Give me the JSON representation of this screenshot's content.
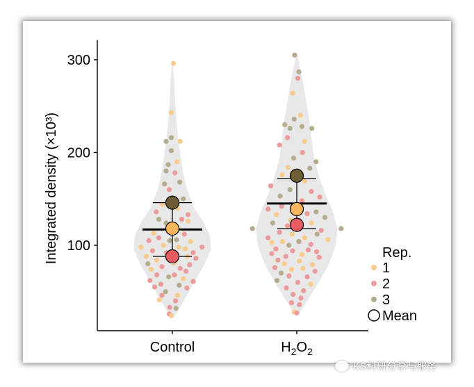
{
  "chart_data": {
    "type": "scatter",
    "subtype": "violin-superplot",
    "ylabel": "Integrated density (×10³)",
    "yticks": [
      100,
      200,
      300
    ],
    "ylim": [
      10,
      315
    ],
    "categories": [
      {
        "label": "Control",
        "main": "Control",
        "sub": "",
        "tail": ""
      },
      {
        "label": "H2O2",
        "main": "H",
        "sub": "2",
        "tail": "O",
        "sub2": "2"
      }
    ],
    "legend": {
      "title": "Rep.",
      "placement": "right",
      "items": [
        {
          "label": "1",
          "color": "#f9cc8e"
        },
        {
          "label": "2",
          "color": "#ec9a9a"
        },
        {
          "label": "3",
          "color": "#b5ac8e"
        }
      ],
      "mean_label": "Mean"
    },
    "rep_colors": {
      "1": "#f9cc8e",
      "2": "#ec9a9a",
      "3": "#b5ac8e"
    },
    "mean_colors": {
      "1": "#fbb55a",
      "2": "#e65a62",
      "3": "#6e5d32"
    },
    "violin_color": "#e8e8e8",
    "groups": [
      {
        "category": "Control",
        "violin": [
          {
            "y": 24,
            "w": 0.05
          },
          {
            "y": 40,
            "w": 0.22
          },
          {
            "y": 60,
            "w": 0.42
          },
          {
            "y": 80,
            "w": 0.62
          },
          {
            "y": 95,
            "w": 0.74
          },
          {
            "y": 110,
            "w": 0.72
          },
          {
            "y": 125,
            "w": 0.6
          },
          {
            "y": 140,
            "w": 0.42
          },
          {
            "y": 160,
            "w": 0.28
          },
          {
            "y": 180,
            "w": 0.2
          },
          {
            "y": 200,
            "w": 0.15
          },
          {
            "y": 220,
            "w": 0.1
          },
          {
            "y": 240,
            "w": 0.07
          },
          {
            "y": 260,
            "w": 0.05
          },
          {
            "y": 280,
            "w": 0.03
          },
          {
            "y": 297,
            "w": 0.01
          }
        ],
        "means": {
          "1": 118,
          "2": 88,
          "3": 146
        },
        "overall_mean": 117,
        "error": [
          88,
          146
        ],
        "points": [
          {
            "dx": 0.02,
            "y": 296,
            "rep": "1"
          },
          {
            "dx": -0.02,
            "y": 243,
            "rep": "1"
          },
          {
            "dx": 0.15,
            "y": 212,
            "rep": "1"
          },
          {
            "dx": -0.12,
            "y": 212,
            "rep": "3"
          },
          {
            "dx": -0.02,
            "y": 216,
            "rep": "3"
          },
          {
            "dx": -0.02,
            "y": 202,
            "rep": "3"
          },
          {
            "dx": 0.09,
            "y": 190,
            "rep": "1"
          },
          {
            "dx": -0.08,
            "y": 187,
            "rep": "3"
          },
          {
            "dx": -0.12,
            "y": 180,
            "rep": "3"
          },
          {
            "dx": 0.05,
            "y": 178,
            "rep": "2"
          },
          {
            "dx": 0.14,
            "y": 168,
            "rep": "3"
          },
          {
            "dx": -0.15,
            "y": 166,
            "rep": "3"
          },
          {
            "dx": -0.06,
            "y": 160,
            "rep": "2"
          },
          {
            "dx": 0.21,
            "y": 150,
            "rep": "3"
          },
          {
            "dx": -0.19,
            "y": 144,
            "rep": "1"
          },
          {
            "dx": 0.1,
            "y": 140,
            "rep": "1"
          },
          {
            "dx": -0.31,
            "y": 136,
            "rep": "2"
          },
          {
            "dx": 0.3,
            "y": 133,
            "rep": "2"
          },
          {
            "dx": -0.26,
            "y": 128,
            "rep": "3"
          },
          {
            "dx": 0.18,
            "y": 128,
            "rep": "2"
          },
          {
            "dx": -0.12,
            "y": 124,
            "rep": "3"
          },
          {
            "dx": 0.3,
            "y": 126,
            "rep": "1"
          },
          {
            "dx": -0.36,
            "y": 113,
            "rep": "1"
          },
          {
            "dx": 0.23,
            "y": 112,
            "rep": "2"
          },
          {
            "dx": -0.26,
            "y": 108,
            "rep": "2"
          },
          {
            "dx": -0.45,
            "y": 105,
            "rep": "2"
          },
          {
            "dx": 0.08,
            "y": 106,
            "rep": "3"
          },
          {
            "dx": -0.05,
            "y": 105,
            "rep": "3"
          },
          {
            "dx": 0.35,
            "y": 104,
            "rep": "1"
          },
          {
            "dx": -0.17,
            "y": 100,
            "rep": "1"
          },
          {
            "dx": 0.12,
            "y": 98,
            "rep": "1"
          },
          {
            "dx": -0.6,
            "y": 98,
            "rep": "1"
          },
          {
            "dx": 0.57,
            "y": 98,
            "rep": "2"
          },
          {
            "dx": 0.25,
            "y": 96,
            "rep": "1"
          },
          {
            "dx": -0.38,
            "y": 94,
            "rep": "2"
          },
          {
            "dx": -0.11,
            "y": 92,
            "rep": "2"
          },
          {
            "dx": 0.4,
            "y": 92,
            "rep": "2"
          },
          {
            "dx": -0.5,
            "y": 88,
            "rep": "1"
          },
          {
            "dx": 0.29,
            "y": 88,
            "rep": "1"
          },
          {
            "dx": 0.45,
            "y": 86,
            "rep": "2"
          },
          {
            "dx": -0.3,
            "y": 84,
            "rep": "1"
          },
          {
            "dx": -0.47,
            "y": 80,
            "rep": "3"
          },
          {
            "dx": 0.04,
            "y": 81,
            "rep": "1"
          },
          {
            "dx": 0.33,
            "y": 79,
            "rep": "2"
          },
          {
            "dx": -0.2,
            "y": 77,
            "rep": "2"
          },
          {
            "dx": 0.15,
            "y": 75,
            "rep": "2"
          },
          {
            "dx": -0.41,
            "y": 74,
            "rep": "1"
          },
          {
            "dx": 0.26,
            "y": 72,
            "rep": "2"
          },
          {
            "dx": -0.3,
            "y": 68,
            "rep": "2"
          },
          {
            "dx": 0.04,
            "y": 68,
            "rep": "2"
          },
          {
            "dx": -0.07,
            "y": 66,
            "rep": "3"
          },
          {
            "dx": 0.21,
            "y": 64,
            "rep": "1"
          },
          {
            "dx": -0.43,
            "y": 62,
            "rep": "2"
          },
          {
            "dx": 0.4,
            "y": 61,
            "rep": "2"
          },
          {
            "dx": -0.22,
            "y": 58,
            "rep": "2"
          },
          {
            "dx": 0.13,
            "y": 57,
            "rep": "3"
          },
          {
            "dx": -0.34,
            "y": 55,
            "rep": "2"
          },
          {
            "dx": 0.28,
            "y": 54,
            "rep": "2"
          },
          {
            "dx": -0.13,
            "y": 50,
            "rep": "3"
          },
          {
            "dx": -0.2,
            "y": 46,
            "rep": "2"
          },
          {
            "dx": 0.1,
            "y": 46,
            "rep": "1"
          },
          {
            "dx": -0.25,
            "y": 41,
            "rep": "1"
          },
          {
            "dx": 0.06,
            "y": 40,
            "rep": "2"
          },
          {
            "dx": -0.05,
            "y": 33,
            "rep": "2"
          },
          {
            "dx": 0.07,
            "y": 32,
            "rep": "3"
          },
          {
            "dx": -0.06,
            "y": 26,
            "rep": "2"
          },
          {
            "dx": -0.02,
            "y": 24,
            "rep": "1"
          }
        ]
      },
      {
        "category": "H2O2",
        "violin": [
          {
            "y": 27,
            "w": 0.05
          },
          {
            "y": 40,
            "w": 0.2
          },
          {
            "y": 60,
            "w": 0.42
          },
          {
            "y": 80,
            "w": 0.62
          },
          {
            "y": 100,
            "w": 0.75
          },
          {
            "y": 118,
            "w": 0.78
          },
          {
            "y": 135,
            "w": 0.7
          },
          {
            "y": 155,
            "w": 0.55
          },
          {
            "y": 175,
            "w": 0.42
          },
          {
            "y": 195,
            "w": 0.33
          },
          {
            "y": 215,
            "w": 0.28
          },
          {
            "y": 235,
            "w": 0.24
          },
          {
            "y": 255,
            "w": 0.18
          },
          {
            "y": 275,
            "w": 0.12
          },
          {
            "y": 292,
            "w": 0.06
          },
          {
            "y": 306,
            "w": 0.01
          }
        ],
        "means": {
          "1": 139,
          "2": 122,
          "3": 175
        },
        "overall_mean": 145,
        "error": [
          118,
          172
        ],
        "points": [
          {
            "dx": -0.04,
            "y": 305,
            "rep": "3"
          },
          {
            "dx": 0.04,
            "y": 287,
            "rep": "3"
          },
          {
            "dx": 0.02,
            "y": 280,
            "rep": "2"
          },
          {
            "dx": -0.08,
            "y": 264,
            "rep": "1"
          },
          {
            "dx": 0.07,
            "y": 240,
            "rep": "1"
          },
          {
            "dx": -0.05,
            "y": 236,
            "rep": "3"
          },
          {
            "dx": -0.23,
            "y": 230,
            "rep": "3"
          },
          {
            "dx": 0.1,
            "y": 228,
            "rep": "3"
          },
          {
            "dx": -0.13,
            "y": 226,
            "rep": "3"
          },
          {
            "dx": 0.29,
            "y": 226,
            "rep": "3"
          },
          {
            "dx": -0.18,
            "y": 216,
            "rep": "2"
          },
          {
            "dx": 0.15,
            "y": 212,
            "rep": "1"
          },
          {
            "dx": -0.33,
            "y": 208,
            "rep": "2"
          },
          {
            "dx": 0.11,
            "y": 200,
            "rep": "2"
          },
          {
            "dx": -0.06,
            "y": 194,
            "rep": "3"
          },
          {
            "dx": 0.37,
            "y": 190,
            "rep": "3"
          },
          {
            "dx": -0.17,
            "y": 184,
            "rep": "1"
          },
          {
            "dx": 0.25,
            "y": 183,
            "rep": "3"
          },
          {
            "dx": -0.28,
            "y": 176,
            "rep": "1"
          },
          {
            "dx": 0.15,
            "y": 169,
            "rep": "1"
          },
          {
            "dx": -0.5,
            "y": 164,
            "rep": "2"
          },
          {
            "dx": -0.13,
            "y": 160,
            "rep": "3"
          },
          {
            "dx": 0.28,
            "y": 158,
            "rep": "2"
          },
          {
            "dx": -0.32,
            "y": 153,
            "rep": "3"
          },
          {
            "dx": 0.44,
            "y": 152,
            "rep": "2"
          },
          {
            "dx": 0.1,
            "y": 148,
            "rep": "2"
          },
          {
            "dx": -0.29,
            "y": 142,
            "rep": "2"
          },
          {
            "dx": -0.55,
            "y": 139,
            "rep": "2"
          },
          {
            "dx": 0.37,
            "y": 136,
            "rep": "3"
          },
          {
            "dx": -0.03,
            "y": 135,
            "rep": "2"
          },
          {
            "dx": 0.2,
            "y": 134,
            "rep": "2"
          },
          {
            "dx": -0.39,
            "y": 133,
            "rep": "1"
          },
          {
            "dx": 0.54,
            "y": 130,
            "rep": "3"
          },
          {
            "dx": -0.12,
            "y": 127,
            "rep": "1"
          },
          {
            "dx": -0.46,
            "y": 124,
            "rep": "3"
          },
          {
            "dx": 0.28,
            "y": 124,
            "rep": "1"
          },
          {
            "dx": -0.18,
            "y": 121,
            "rep": "2"
          },
          {
            "dx": 0.07,
            "y": 120,
            "rep": "1"
          },
          {
            "dx": -0.85,
            "y": 118,
            "rep": "3"
          },
          {
            "dx": 0.85,
            "y": 118,
            "rep": "3"
          },
          {
            "dx": 0.47,
            "y": 116,
            "rep": "2"
          },
          {
            "dx": -0.33,
            "y": 114,
            "rep": "2"
          },
          {
            "dx": -0.09,
            "y": 112,
            "rep": "1"
          },
          {
            "dx": 0.39,
            "y": 112,
            "rep": "3"
          },
          {
            "dx": -0.55,
            "y": 108,
            "rep": "2"
          },
          {
            "dx": 0.15,
            "y": 108,
            "rep": "1"
          },
          {
            "dx": 0.6,
            "y": 106,
            "rep": "1"
          },
          {
            "dx": -0.27,
            "y": 104,
            "rep": "1"
          },
          {
            "dx": -0.48,
            "y": 103,
            "rep": "1"
          },
          {
            "dx": 0.04,
            "y": 104,
            "rep": "3"
          },
          {
            "dx": 0.27,
            "y": 101,
            "rep": "2"
          },
          {
            "dx": -0.15,
            "y": 100,
            "rep": "3"
          },
          {
            "dx": -0.4,
            "y": 96,
            "rep": "2"
          },
          {
            "dx": 0.22,
            "y": 95,
            "rep": "2"
          },
          {
            "dx": -0.08,
            "y": 94,
            "rep": "2"
          },
          {
            "dx": 0.38,
            "y": 93,
            "rep": "2"
          },
          {
            "dx": -0.48,
            "y": 91,
            "rep": "2"
          },
          {
            "dx": 0.1,
            "y": 90,
            "rep": "1"
          },
          {
            "dx": -0.21,
            "y": 88,
            "rep": "2"
          },
          {
            "dx": 0.43,
            "y": 87,
            "rep": "2"
          },
          {
            "dx": -0.36,
            "y": 84,
            "rep": "2"
          },
          {
            "dx": 0.05,
            "y": 83,
            "rep": "1"
          },
          {
            "dx": -0.24,
            "y": 80,
            "rep": "1"
          },
          {
            "dx": 0.3,
            "y": 79,
            "rep": "1"
          },
          {
            "dx": -0.42,
            "y": 76,
            "rep": "2"
          },
          {
            "dx": 0.12,
            "y": 75,
            "rep": "1"
          },
          {
            "dx": -0.1,
            "y": 74,
            "rep": "1"
          },
          {
            "dx": 0.35,
            "y": 72,
            "rep": "2"
          },
          {
            "dx": -0.3,
            "y": 70,
            "rep": "3"
          },
          {
            "dx": -0.15,
            "y": 67,
            "rep": "2"
          },
          {
            "dx": 0.2,
            "y": 66,
            "rep": "2"
          },
          {
            "dx": -0.38,
            "y": 62,
            "rep": "3"
          },
          {
            "dx": 0.02,
            "y": 60,
            "rep": "2"
          },
          {
            "dx": 0.27,
            "y": 58,
            "rep": "1"
          },
          {
            "dx": -0.2,
            "y": 54,
            "rep": "2"
          },
          {
            "dx": 0.13,
            "y": 51,
            "rep": "2"
          },
          {
            "dx": -0.07,
            "y": 47,
            "rep": "2"
          },
          {
            "dx": 0.08,
            "y": 43,
            "rep": "2"
          },
          {
            "dx": -0.1,
            "y": 38,
            "rep": "2"
          },
          {
            "dx": 0.05,
            "y": 36,
            "rep": "2"
          },
          {
            "dx": -0.05,
            "y": 28,
            "rep": "1"
          },
          {
            "dx": 0.0,
            "y": 27,
            "rep": "2"
          }
        ]
      }
    ]
  },
  "watermark": {
    "text": "KS科研分享与服务",
    "icon": "chat-bubble-icon"
  }
}
